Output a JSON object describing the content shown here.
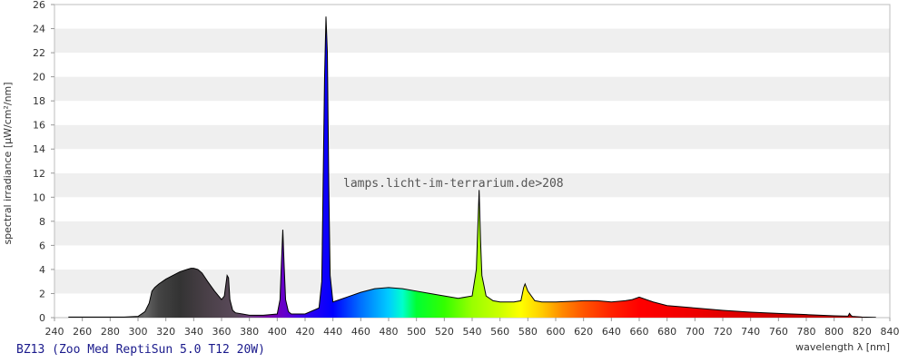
{
  "caption": "BZ13 (Zoo Med ReptiSun 5.0 T12 20W)",
  "watermark": "lamps.licht-im-terrarium.de>208",
  "chart_data": {
    "type": "area",
    "xlabel": "wavelength λ [nm]",
    "ylabel": "spectral irradiance [µW/cm²/nm]",
    "xlim": [
      240,
      840
    ],
    "ylim": [
      0,
      26
    ],
    "x_ticks": [
      240,
      260,
      280,
      300,
      320,
      340,
      360,
      380,
      400,
      420,
      440,
      460,
      480,
      500,
      520,
      540,
      560,
      580,
      600,
      620,
      640,
      660,
      680,
      700,
      720,
      740,
      760,
      780,
      800,
      820,
      840
    ],
    "y_ticks": [
      0,
      2,
      4,
      6,
      8,
      10,
      12,
      14,
      16,
      18,
      20,
      22,
      24,
      26
    ],
    "grid": "horizontal alternating bands",
    "legend": "none",
    "series": [
      {
        "x": [
          250,
          290,
          300,
          305,
          308,
          310,
          312,
          315,
          320,
          325,
          330,
          335,
          338,
          340,
          343,
          346,
          350,
          355,
          360,
          362,
          364,
          365,
          366,
          368,
          370,
          375,
          380,
          390,
          400,
          402,
          403,
          404,
          405,
          406,
          408,
          410,
          420,
          430,
          432,
          434,
          435,
          436,
          437,
          438,
          440,
          445,
          450,
          460,
          470,
          480,
          490,
          500,
          510,
          520,
          530,
          540,
          543,
          545,
          546,
          547,
          550,
          555,
          560,
          570,
          575,
          577,
          578,
          580,
          585,
          590,
          600,
          620,
          630,
          640,
          650,
          655,
          660,
          665,
          670,
          680,
          700,
          720,
          740,
          760,
          780,
          800,
          810,
          811,
          812,
          813,
          820,
          830
        ],
        "y": [
          0.05,
          0.05,
          0.1,
          0.5,
          1.2,
          2.2,
          2.5,
          2.8,
          3.2,
          3.5,
          3.8,
          4.0,
          4.1,
          4.1,
          4.0,
          3.7,
          3.0,
          2.2,
          1.5,
          1.8,
          3.5,
          3.3,
          1.5,
          0.6,
          0.4,
          0.3,
          0.2,
          0.2,
          0.3,
          1.5,
          4.5,
          7.3,
          4.2,
          1.5,
          0.5,
          0.3,
          0.3,
          0.8,
          3.0,
          20.0,
          25.0,
          22.0,
          11.0,
          3.5,
          1.3,
          1.5,
          1.7,
          2.1,
          2.4,
          2.5,
          2.4,
          2.2,
          2.0,
          1.8,
          1.6,
          1.8,
          4.0,
          10.6,
          6.5,
          3.5,
          1.8,
          1.4,
          1.3,
          1.3,
          1.4,
          2.5,
          2.8,
          2.2,
          1.4,
          1.3,
          1.3,
          1.4,
          1.4,
          1.3,
          1.4,
          1.5,
          1.7,
          1.5,
          1.3,
          1.0,
          0.8,
          0.6,
          0.45,
          0.35,
          0.25,
          0.15,
          0.12,
          0.35,
          0.2,
          0.1,
          0.05,
          0.02
        ]
      }
    ]
  }
}
